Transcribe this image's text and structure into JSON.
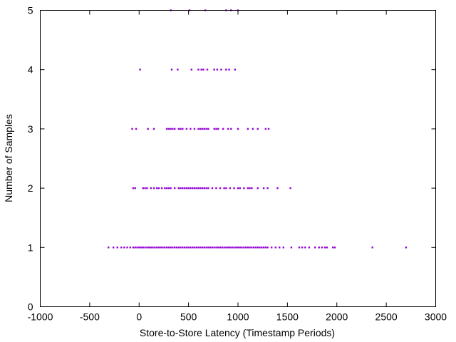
{
  "chart_data": {
    "type": "scatter",
    "title": "",
    "xlabel": "Store-to-Store Latency (Timestamp Periods)",
    "ylabel": "Number of Samples",
    "xlim": [
      -1000,
      3000
    ],
    "ylim": [
      0,
      5
    ],
    "xticks": [
      "-1000",
      "-500",
      "0",
      "500",
      "1000",
      "1500",
      "2000",
      "2500",
      "3000"
    ],
    "yticks": [
      "0",
      "1",
      "2",
      "3",
      "4",
      "5"
    ],
    "grid": false,
    "legend": "none",
    "point_color": "#9400d3",
    "series": [
      {
        "points": [
          [
            320,
            5
          ],
          [
            510,
            5
          ],
          [
            670,
            5
          ],
          [
            880,
            5
          ],
          [
            930,
            5
          ],
          [
            1000,
            5
          ],
          [
            10,
            4
          ],
          [
            330,
            4
          ],
          [
            390,
            4
          ],
          [
            530,
            4
          ],
          [
            600,
            4
          ],
          [
            630,
            4
          ],
          [
            650,
            4
          ],
          [
            690,
            4
          ],
          [
            760,
            4
          ],
          [
            790,
            4
          ],
          [
            830,
            4
          ],
          [
            880,
            4
          ],
          [
            910,
            4
          ],
          [
            970,
            4
          ],
          [
            -70,
            3
          ],
          [
            -30,
            3
          ],
          [
            90,
            3
          ],
          [
            150,
            3
          ],
          [
            280,
            3
          ],
          [
            300,
            3
          ],
          [
            320,
            3
          ],
          [
            340,
            3
          ],
          [
            360,
            3
          ],
          [
            400,
            3
          ],
          [
            420,
            3
          ],
          [
            440,
            3
          ],
          [
            480,
            3
          ],
          [
            520,
            3
          ],
          [
            560,
            3
          ],
          [
            600,
            3
          ],
          [
            620,
            3
          ],
          [
            640,
            3
          ],
          [
            660,
            3
          ],
          [
            680,
            3
          ],
          [
            700,
            3
          ],
          [
            760,
            3
          ],
          [
            780,
            3
          ],
          [
            800,
            3
          ],
          [
            850,
            3
          ],
          [
            900,
            3
          ],
          [
            930,
            3
          ],
          [
            1000,
            3
          ],
          [
            1100,
            3
          ],
          [
            1150,
            3
          ],
          [
            1200,
            3
          ],
          [
            1280,
            3
          ],
          [
            1310,
            3
          ],
          [
            -60,
            2
          ],
          [
            -40,
            2
          ],
          [
            40,
            2
          ],
          [
            60,
            2
          ],
          [
            80,
            2
          ],
          [
            120,
            2
          ],
          [
            150,
            2
          ],
          [
            180,
            2
          ],
          [
            200,
            2
          ],
          [
            230,
            2
          ],
          [
            260,
            2
          ],
          [
            280,
            2
          ],
          [
            300,
            2
          ],
          [
            320,
            2
          ],
          [
            360,
            2
          ],
          [
            400,
            2
          ],
          [
            420,
            2
          ],
          [
            440,
            2
          ],
          [
            460,
            2
          ],
          [
            480,
            2
          ],
          [
            500,
            2
          ],
          [
            520,
            2
          ],
          [
            540,
            2
          ],
          [
            560,
            2
          ],
          [
            580,
            2
          ],
          [
            600,
            2
          ],
          [
            620,
            2
          ],
          [
            640,
            2
          ],
          [
            660,
            2
          ],
          [
            680,
            2
          ],
          [
            700,
            2
          ],
          [
            740,
            2
          ],
          [
            780,
            2
          ],
          [
            820,
            2
          ],
          [
            860,
            2
          ],
          [
            880,
            2
          ],
          [
            920,
            2
          ],
          [
            960,
            2
          ],
          [
            1000,
            2
          ],
          [
            1020,
            2
          ],
          [
            1060,
            2
          ],
          [
            1100,
            2
          ],
          [
            1120,
            2
          ],
          [
            1140,
            2
          ],
          [
            1200,
            2
          ],
          [
            1260,
            2
          ],
          [
            1300,
            2
          ],
          [
            1400,
            2
          ],
          [
            1530,
            2
          ],
          [
            -310,
            1
          ],
          [
            -260,
            1
          ],
          [
            -220,
            1
          ],
          [
            -180,
            1
          ],
          [
            -150,
            1
          ],
          [
            -120,
            1
          ],
          [
            -90,
            1
          ],
          [
            -60,
            1
          ],
          [
            -40,
            1
          ],
          [
            -20,
            1
          ],
          [
            0,
            1
          ],
          [
            20,
            1
          ],
          [
            40,
            1
          ],
          [
            60,
            1
          ],
          [
            80,
            1
          ],
          [
            100,
            1
          ],
          [
            120,
            1
          ],
          [
            140,
            1
          ],
          [
            160,
            1
          ],
          [
            180,
            1
          ],
          [
            200,
            1
          ],
          [
            220,
            1
          ],
          [
            240,
            1
          ],
          [
            260,
            1
          ],
          [
            280,
            1
          ],
          [
            300,
            1
          ],
          [
            320,
            1
          ],
          [
            340,
            1
          ],
          [
            360,
            1
          ],
          [
            380,
            1
          ],
          [
            400,
            1
          ],
          [
            420,
            1
          ],
          [
            440,
            1
          ],
          [
            460,
            1
          ],
          [
            480,
            1
          ],
          [
            500,
            1
          ],
          [
            520,
            1
          ],
          [
            540,
            1
          ],
          [
            560,
            1
          ],
          [
            580,
            1
          ],
          [
            600,
            1
          ],
          [
            620,
            1
          ],
          [
            640,
            1
          ],
          [
            660,
            1
          ],
          [
            680,
            1
          ],
          [
            700,
            1
          ],
          [
            720,
            1
          ],
          [
            740,
            1
          ],
          [
            760,
            1
          ],
          [
            780,
            1
          ],
          [
            800,
            1
          ],
          [
            820,
            1
          ],
          [
            840,
            1
          ],
          [
            860,
            1
          ],
          [
            880,
            1
          ],
          [
            900,
            1
          ],
          [
            920,
            1
          ],
          [
            940,
            1
          ],
          [
            960,
            1
          ],
          [
            980,
            1
          ],
          [
            1000,
            1
          ],
          [
            1020,
            1
          ],
          [
            1040,
            1
          ],
          [
            1060,
            1
          ],
          [
            1080,
            1
          ],
          [
            1100,
            1
          ],
          [
            1120,
            1
          ],
          [
            1140,
            1
          ],
          [
            1160,
            1
          ],
          [
            1180,
            1
          ],
          [
            1200,
            1
          ],
          [
            1220,
            1
          ],
          [
            1240,
            1
          ],
          [
            1260,
            1
          ],
          [
            1280,
            1
          ],
          [
            1300,
            1
          ],
          [
            1340,
            1
          ],
          [
            1380,
            1
          ],
          [
            1420,
            1
          ],
          [
            1460,
            1
          ],
          [
            1540,
            1
          ],
          [
            1620,
            1
          ],
          [
            1650,
            1
          ],
          [
            1680,
            1
          ],
          [
            1720,
            1
          ],
          [
            1780,
            1
          ],
          [
            1820,
            1
          ],
          [
            1850,
            1
          ],
          [
            1880,
            1
          ],
          [
            1900,
            1
          ],
          [
            1960,
            1
          ],
          [
            1980,
            1
          ],
          [
            2360,
            1
          ],
          [
            2700,
            1
          ]
        ]
      }
    ]
  }
}
